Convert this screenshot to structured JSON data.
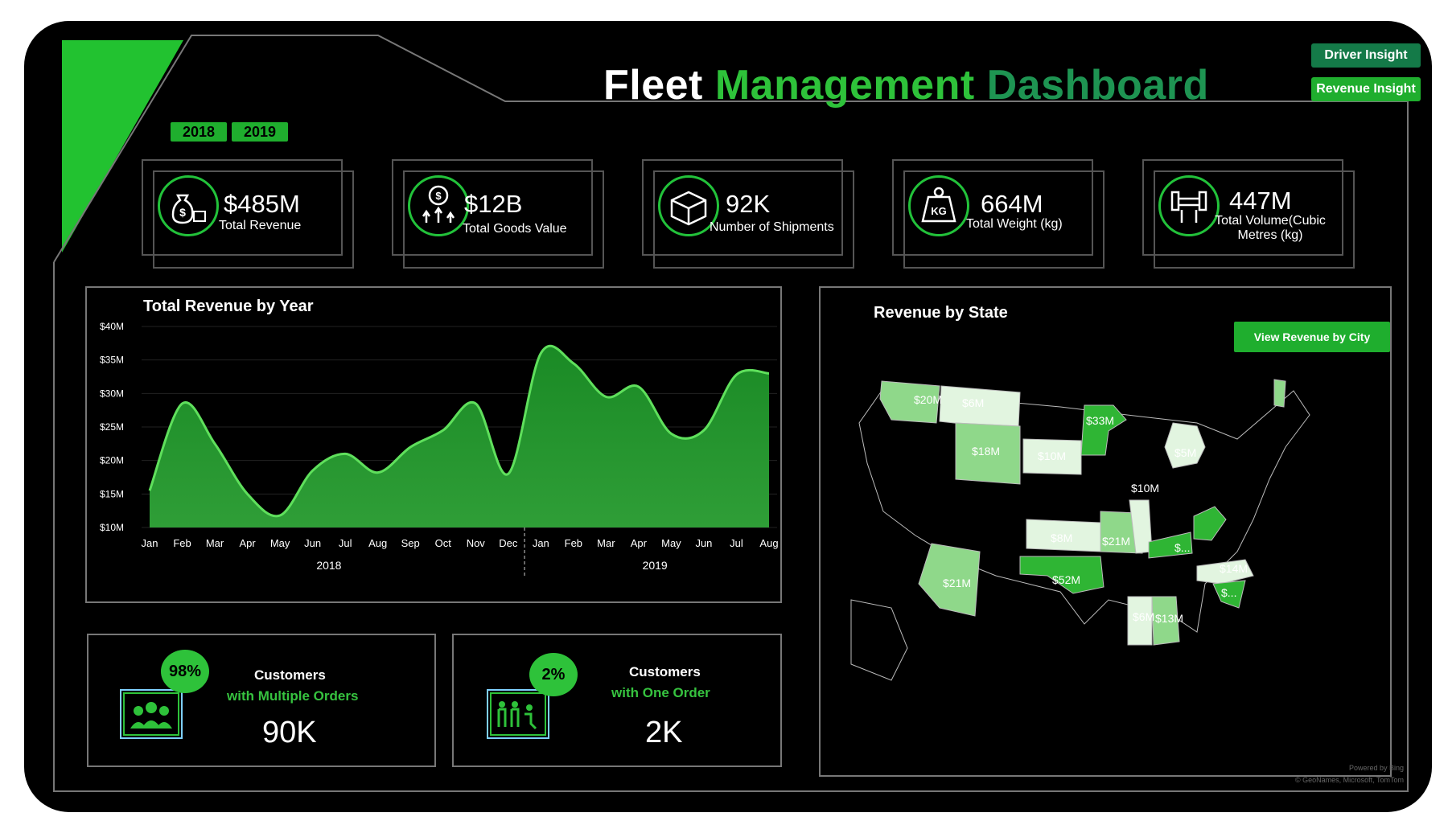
{
  "header": {
    "title_word1": "Fleet",
    "title_word2": "Management",
    "title_word3": "Dashboard"
  },
  "nav": {
    "driver_insight": "Driver Insight",
    "revenue_insight": "Revenue Insight"
  },
  "year_filter": [
    "2018",
    "2019"
  ],
  "kpis": [
    {
      "value": "$485M",
      "label": "Total Revenue",
      "icon": "money-bag-icon"
    },
    {
      "value": "$12B",
      "label": "Total Goods Value",
      "icon": "coin-growth-icon"
    },
    {
      "value": "92K",
      "label": "Number of Shipments",
      "icon": "package-box-icon"
    },
    {
      "value": "664M",
      "label": "Total Weight (kg)",
      "icon": "kg-weight-icon"
    },
    {
      "value": "447M",
      "label_line1": "Total Volume(Cubic",
      "label_line2": "Metres (kg)",
      "icon": "hand-box-icon"
    }
  ],
  "revenue_chart": {
    "title": "Total Revenue by Year",
    "chart_data": {
      "type": "area",
      "title": "Total Revenue by Year",
      "x": [
        "Jan",
        "Feb",
        "Mar",
        "Apr",
        "May",
        "Jun",
        "Jul",
        "Aug",
        "Sep",
        "Oct",
        "Nov",
        "Dec",
        "Jan",
        "Feb",
        "Mar",
        "Apr",
        "May",
        "Jun",
        "Jul",
        "Aug"
      ],
      "groups": [
        {
          "name": "2018",
          "from": 0,
          "to": 11
        },
        {
          "name": "2019",
          "from": 12,
          "to": 19
        }
      ],
      "values": [
        15.5,
        28.5,
        22.5,
        15,
        11.8,
        18.5,
        21,
        18.2,
        22,
        24.5,
        28.5,
        18,
        36,
        34.5,
        29.5,
        31,
        24,
        24.5,
        32.8,
        33
      ],
      "yticks": [
        "$40M",
        "$35M",
        "$30M",
        "$25M",
        "$20M",
        "$15M",
        "$10M"
      ],
      "ylim": [
        10,
        40
      ],
      "color": "#2ec23a"
    }
  },
  "map": {
    "title": "Revenue by State",
    "button": "View Revenue by City",
    "labels": [
      "$20M",
      "$6M",
      "$33M",
      "$10M",
      "$18M",
      "$5M",
      "$10M",
      "$8M",
      "$21M",
      "$...",
      "$21M",
      "$52M",
      "$14M",
      "$...",
      "$6M",
      "$13M"
    ],
    "powered_line1": "Powered by Bing",
    "powered_line2": "© GeoNames, Microsoft, TomTom"
  },
  "customers": [
    {
      "percent": "98%",
      "line1": "Customers",
      "line2": "with Multiple Orders",
      "value": "90K",
      "icon": "people-group-icon"
    },
    {
      "percent": "2%",
      "line1": "Customers",
      "line2": "with One Order",
      "value": "2K",
      "icon": "family-icon"
    }
  ],
  "colors": {
    "accent": "#2ec23a",
    "dark_green": "#1e9452",
    "background": "#000000"
  }
}
